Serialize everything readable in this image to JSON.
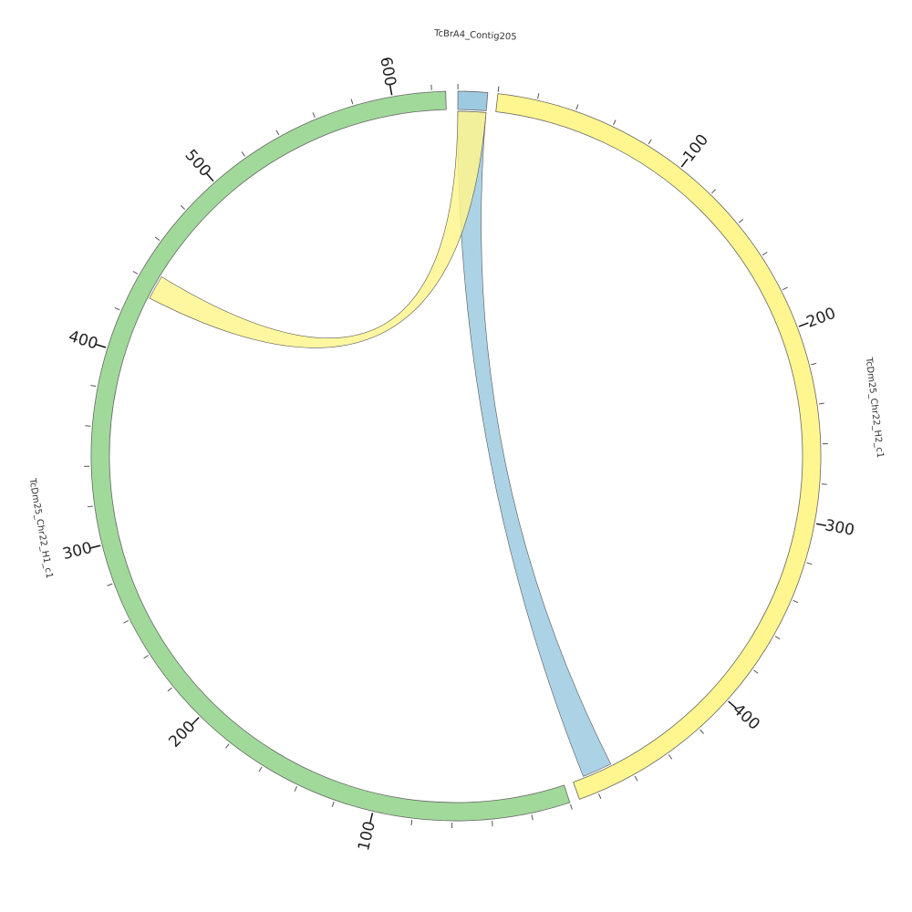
{
  "chart_data": {
    "type": "chord",
    "segments": [
      {
        "name": "TcBrA4_Contig205",
        "length": 15,
        "color": "#9ecae1",
        "ticks": []
      },
      {
        "name": "TcDm25_Chr22_H2_c1",
        "length": 490,
        "color": "#fff68f",
        "ticks": [
          100,
          200,
          300,
          400
        ]
      },
      {
        "name": "TcDm25_Chr22_H1_c1",
        "length": 627,
        "color": "#a1d99b",
        "ticks": [
          100,
          200,
          300,
          400,
          500,
          600
        ]
      }
    ],
    "minor_tick_step": 20,
    "links": [
      {
        "source": {
          "segment": 0,
          "start": 0,
          "end": 15
        },
        "target": {
          "segment": 1,
          "start": 468,
          "end": 484
        },
        "color": "#9ecae1"
      },
      {
        "source": {
          "segment": 0,
          "start": 0,
          "end": 15
        },
        "target": {
          "segment": 2,
          "start": 432,
          "end": 445
        },
        "color": "#fff68f"
      }
    ]
  }
}
